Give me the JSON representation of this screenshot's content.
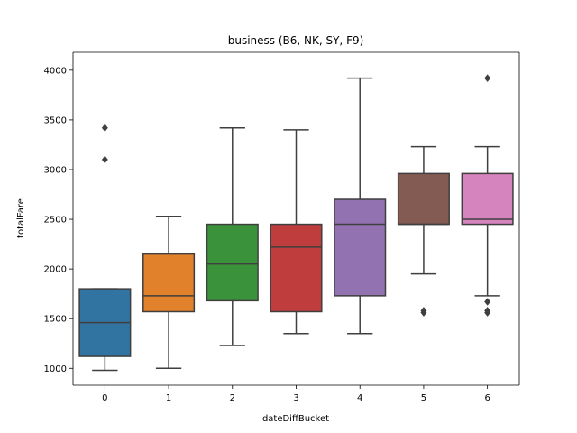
{
  "chart_data": {
    "type": "box",
    "title": "business (B6, NK, SY, F9)",
    "xlabel": "dateDiffBucket",
    "ylabel": "totalFare",
    "ylim": [
      830,
      4180
    ],
    "yticks": [
      1000,
      1500,
      2000,
      2500,
      3000,
      3500,
      4000
    ],
    "grid": false,
    "legend": "none",
    "categories": [
      "0",
      "1",
      "2",
      "3",
      "4",
      "5",
      "6"
    ],
    "colors": [
      "#3274a1",
      "#e1812c",
      "#3a923a",
      "#c03d3e",
      "#9372b2",
      "#845b53",
      "#d684bd"
    ],
    "boxes": [
      {
        "category": "0",
        "whisker_low": 980,
        "q1": 1120,
        "median": 1460,
        "q3": 1800,
        "whisker_high": 1800,
        "outliers": [
          3100,
          3420
        ]
      },
      {
        "category": "1",
        "whisker_low": 1000,
        "q1": 1570,
        "median": 1730,
        "q3": 2150,
        "whisker_high": 2530,
        "outliers": []
      },
      {
        "category": "2",
        "whisker_low": 1230,
        "q1": 1680,
        "median": 2050,
        "q3": 2450,
        "whisker_high": 3420,
        "outliers": []
      },
      {
        "category": "3",
        "whisker_low": 1350,
        "q1": 1570,
        "median": 2220,
        "q3": 2450,
        "whisker_high": 3400,
        "outliers": []
      },
      {
        "category": "4",
        "whisker_low": 1350,
        "q1": 1730,
        "median": 2450,
        "q3": 2700,
        "whisker_high": 3920,
        "outliers": []
      },
      {
        "category": "5",
        "whisker_low": 1950,
        "q1": 2450,
        "median": 2450,
        "q3": 2960,
        "whisker_high": 3230,
        "outliers": [
          1560,
          1580
        ]
      },
      {
        "category": "6",
        "whisker_low": 1730,
        "q1": 2450,
        "median": 2500,
        "q3": 2960,
        "whisker_high": 3230,
        "outliers": [
          1560,
          1580,
          1670,
          3920
        ]
      }
    ]
  }
}
